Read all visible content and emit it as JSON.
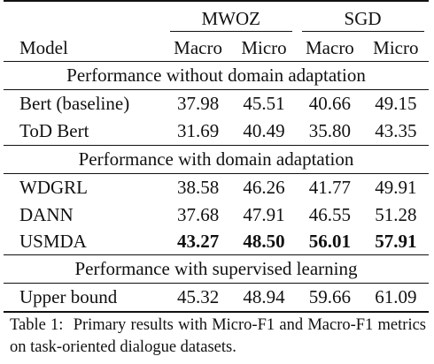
{
  "table": {
    "groups": [
      "MWOZ",
      "SGD"
    ],
    "columns": {
      "model": "Model",
      "mwoz_macro": "Macro",
      "mwoz_micro": "Micro",
      "sgd_macro": "Macro",
      "sgd_micro": "Micro"
    },
    "sections": [
      {
        "title": "Performance without domain adaptation",
        "rows": [
          {
            "model": "Bert (baseline)",
            "values": [
              "37.98",
              "45.51",
              "40.66",
              "49.15"
            ],
            "bold": false
          },
          {
            "model": "ToD Bert",
            "values": [
              "31.69",
              "40.49",
              "35.80",
              "43.35"
            ],
            "bold": false
          }
        ]
      },
      {
        "title": "Performance with domain adaptation",
        "rows": [
          {
            "model": "WDGRL",
            "values": [
              "38.58",
              "46.26",
              "41.77",
              "49.91"
            ],
            "bold": false
          },
          {
            "model": "DANN",
            "values": [
              "37.68",
              "47.91",
              "46.55",
              "51.28"
            ],
            "bold": false
          },
          {
            "model": "USMDA",
            "values": [
              "43.27",
              "48.50",
              "56.01",
              "57.91"
            ],
            "bold": true
          }
        ]
      },
      {
        "title": "Performance with supervised learning",
        "rows": [
          {
            "model": "Upper bound",
            "values": [
              "45.32",
              "48.94",
              "59.66",
              "61.09"
            ],
            "bold": false
          }
        ]
      }
    ]
  },
  "caption": {
    "label": "Table 1:",
    "text": "Primary results with Micro-F1 and Macro-F1 metrics on task-oriented dialogue datasets."
  }
}
